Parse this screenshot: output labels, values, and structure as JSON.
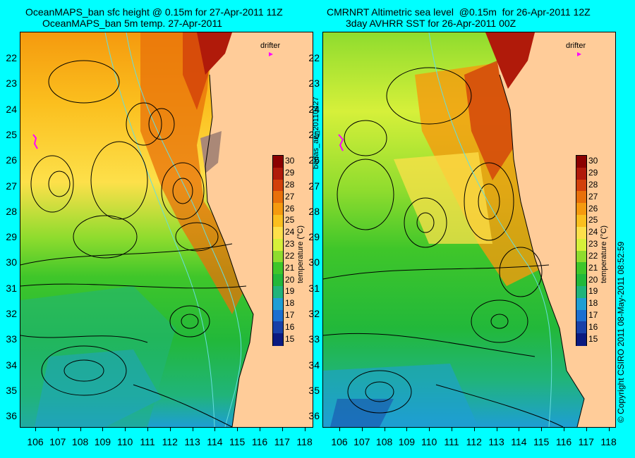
{
  "left_panel": {
    "title_line1": "OceanMAPS_ban sfc height @ 0.15m for 27-Apr-2011 11Z",
    "title_line2": "OceanMAPS_ban 5m temp. 27-Apr-2011",
    "drifter_label": "drifter"
  },
  "right_panel": {
    "title_line1": "CMRNRT Altimetric sea level  @0.15m  for 26-Apr-2011 12Z",
    "title_line2": "3day AVHRR SST for 26-Apr-2011 00Z",
    "drifter_label": "drifter"
  },
  "side_label_middle": "bodas_an_20110427",
  "side_label_right": "© Copyright CSIRO 2011   08-May-2011 08:52:59",
  "colorbar": {
    "title": "temperature (°C)",
    "ticks": [
      "30",
      "29",
      "28",
      "27",
      "26",
      "25",
      "24",
      "23",
      "22",
      "21",
      "20",
      "19",
      "18",
      "17",
      "16",
      "15"
    ],
    "colors": [
      "#8b0000",
      "#b01a0a",
      "#d2400a",
      "#e8700a",
      "#f59a0e",
      "#fbbf1e",
      "#fde04a",
      "#d6f03a",
      "#8fdc2e",
      "#3fc62a",
      "#22b83a",
      "#20b47a",
      "#1e9ed4",
      "#1c6fd0",
      "#1740a8",
      "#0a1a80"
    ]
  },
  "axes": {
    "lat_labels": [
      "22",
      "23",
      "24",
      "25",
      "26",
      "27",
      "28",
      "29",
      "30",
      "31",
      "32",
      "33",
      "34",
      "35",
      "36"
    ],
    "lon_labels": [
      "106",
      "107",
      "108",
      "109",
      "110",
      "111",
      "112",
      "113",
      "114",
      "115",
      "116",
      "117",
      "118"
    ]
  },
  "colors": {
    "background": "#00ffff",
    "land": "#ffcc99",
    "drifter": "#ff00ff",
    "contour": "#000000",
    "bathymetry": "#66dddd"
  }
}
